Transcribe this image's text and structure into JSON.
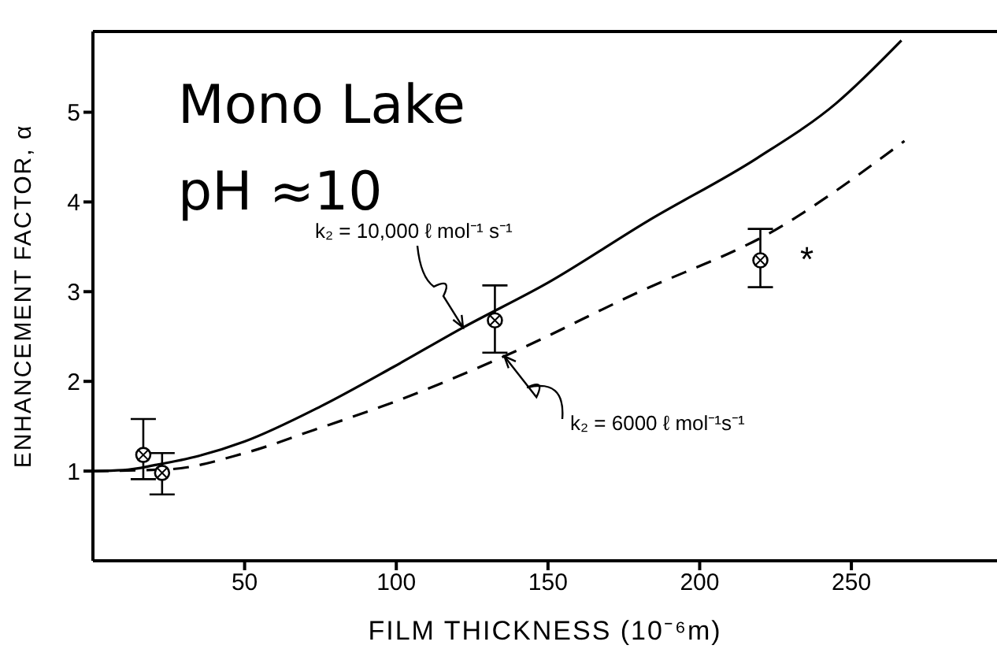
{
  "chart_data": {
    "type": "line",
    "xlabel": "FILM THICKNESS (10⁻⁶m)",
    "ylabel": "ENHANCEMENT FACTOR, α",
    "xlim": [
      0,
      298
    ],
    "xticks": [
      50,
      100,
      150,
      200,
      250
    ],
    "ylim": [
      0,
      5.9
    ],
    "yticks": [
      1,
      2,
      3,
      4,
      5
    ],
    "annotations": [
      "Mono Lake",
      "pH ≈10",
      {
        "text": "k₂ = 10,000 ℓ mol⁻¹ s⁻¹",
        "x": 122,
        "y": 2.6
      },
      {
        "text": "k₂ = 6000 ℓ mol⁻¹s⁻¹",
        "x": 135.6,
        "y": 2.28
      },
      "*"
    ],
    "series": [
      {
        "color": "#000000",
        "line_style": "solid",
        "marker": "none",
        "x": [
          0,
          10,
          21,
          35,
          50,
          75,
          99,
          122,
          150,
          183,
          219,
          245,
          266.5
        ],
        "values": [
          1,
          1.01,
          1.07,
          1.17,
          1.33,
          1.72,
          2.16,
          2.6,
          3.1,
          3.79,
          4.49,
          5.1,
          5.8
        ]
      },
      {
        "color": "#000000",
        "line_style": "dashed",
        "marker": "none",
        "x": [
          0,
          25,
          50,
          73,
          100,
          135.6,
          177,
          229,
          239.5,
          267.5
        ],
        "values": [
          1,
          1.02,
          1.2,
          1.46,
          1.78,
          2.28,
          2.95,
          3.77,
          4.0,
          4.68
        ]
      },
      {
        "type": "scatter",
        "color": "#000000",
        "marker": "cross",
        "x": [
          16.6,
          22.8,
          132.5,
          220
        ],
        "values": [
          1.18,
          0.98,
          2.68,
          3.35
        ],
        "errors": [
          [
            0.91,
            1.58
          ],
          [
            0.74,
            1.2
          ],
          [
            2.32,
            3.07
          ],
          [
            3.05,
            3.7
          ]
        ]
      }
    ]
  }
}
